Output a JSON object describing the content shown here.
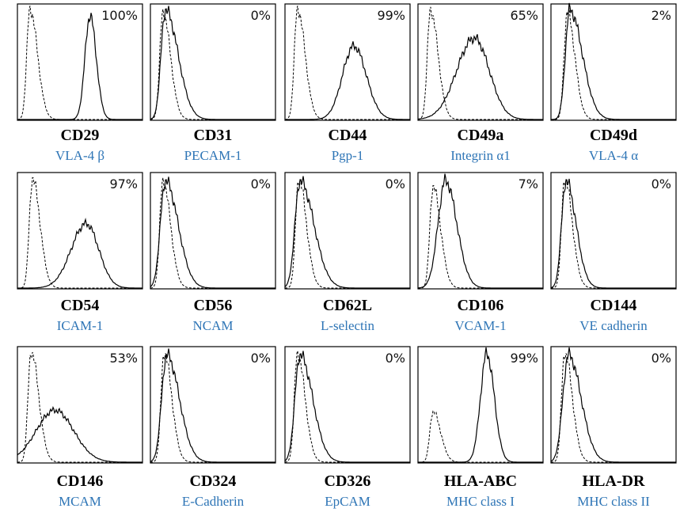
{
  "panels": [
    {
      "percent": "100%",
      "marker": "CD29",
      "name": "VLA-4 β"
    },
    {
      "percent": "0%",
      "marker": "CD31",
      "name": "PECAM-1"
    },
    {
      "percent": "99%",
      "marker": "CD44",
      "name": "Pgp-1"
    },
    {
      "percent": "65%",
      "marker": "CD49a",
      "name": "Integrin α1"
    },
    {
      "percent": "2%",
      "marker": "CD49d",
      "name": "VLA-4 α"
    },
    {
      "percent": "97%",
      "marker": "CD54",
      "name": "ICAM-1"
    },
    {
      "percent": "0%",
      "marker": "CD56",
      "name": "NCAM"
    },
    {
      "percent": "0%",
      "marker": "CD62L",
      "name": "L-selectin"
    },
    {
      "percent": "7%",
      "marker": "CD106",
      "name": "VCAM-1"
    },
    {
      "percent": "0%",
      "marker": "CD144",
      "name": "VE cadherin"
    },
    {
      "percent": "53%",
      "marker": "CD146",
      "name": "MCAM"
    },
    {
      "percent": "0%",
      "marker": "CD324",
      "name": "E-Cadherin"
    },
    {
      "percent": "0%",
      "marker": "CD326",
      "name": "EpCAM"
    },
    {
      "percent": "99%",
      "marker": "HLA-ABC",
      "name": "MHC class I"
    },
    {
      "percent": "0%",
      "marker": "HLA-DR",
      "name": "MHC class II"
    }
  ]
}
